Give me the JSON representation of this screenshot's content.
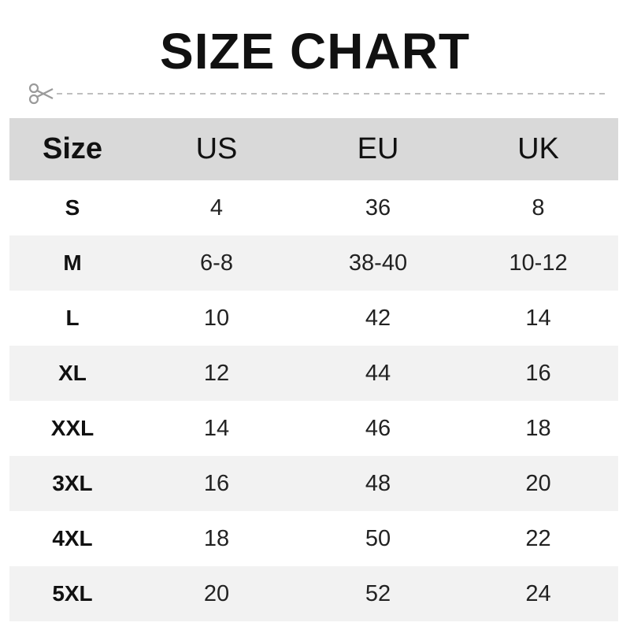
{
  "title": "SIZE CHART",
  "icons": {
    "cut_line": "scissors-icon"
  },
  "colors": {
    "header_bg": "#d9d9d9",
    "alt_row_bg": "#f2f2f2",
    "scissors": "#9a9a9a"
  },
  "table": {
    "headers": [
      "Size",
      "US",
      "EU",
      "UK"
    ],
    "rows": [
      [
        "S",
        "4",
        "36",
        "8"
      ],
      [
        "M",
        "6-8",
        "38-40",
        "10-12"
      ],
      [
        "L",
        "10",
        "42",
        "14"
      ],
      [
        "XL",
        "12",
        "44",
        "16"
      ],
      [
        "XXL",
        "14",
        "46",
        "18"
      ],
      [
        "3XL",
        "16",
        "48",
        "20"
      ],
      [
        "4XL",
        "18",
        "50",
        "22"
      ],
      [
        "5XL",
        "20",
        "52",
        "24"
      ]
    ]
  }
}
